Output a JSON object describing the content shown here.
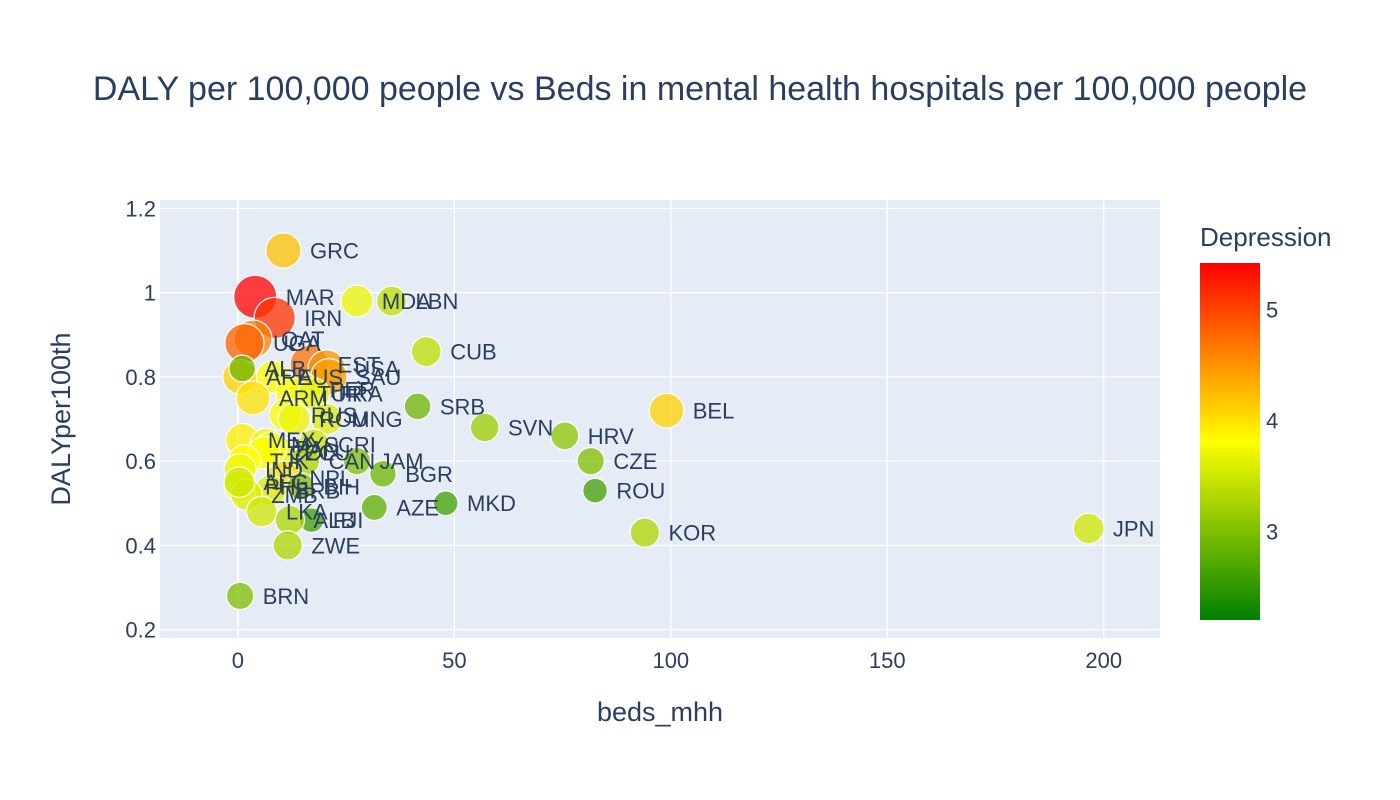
{
  "chart_data": {
    "type": "scatter",
    "title": "DALY per 100,000 people vs Beds in mental health hospitals per 100,000 people",
    "xlabel": "beds_mhh",
    "ylabel": "DALYper100th",
    "xlim": [
      -18,
      213
    ],
    "ylim": [
      0.18,
      1.22
    ],
    "x_ticks": [
      0,
      50,
      100,
      150,
      200
    ],
    "x_tick_labels": [
      "0",
      "50",
      "100",
      "150",
      "200"
    ],
    "y_ticks": [
      0.2,
      0.4,
      0.6,
      0.8,
      1.0,
      1.2
    ],
    "y_tick_labels": [
      "0.2",
      "0.4",
      "0.6",
      "0.8",
      "1",
      "1.2"
    ],
    "grid": true,
    "plot_background": "#e5ecf6",
    "colorbar": {
      "title": "Depression",
      "min": 2.2,
      "max": 5.42,
      "ticks": [
        3,
        4,
        5
      ],
      "tick_labels": [
        "3",
        "4",
        "5"
      ],
      "colors": [
        "#008000",
        "#ffff00",
        "#ff0000"
      ]
    },
    "series": [
      {
        "points": [
          {
            "label": "GRC",
            "x": 10.5,
            "y": 1.1,
            "depression": 4.2
          },
          {
            "label": "MAR",
            "x": 4.0,
            "y": 0.99,
            "depression": 5.4
          },
          {
            "label": "MDA",
            "x": 27.5,
            "y": 0.98,
            "depression": 3.7
          },
          {
            "label": "LBN",
            "x": 35.5,
            "y": 0.98,
            "depression": 3.4
          },
          {
            "label": "IRN",
            "x": 8.5,
            "y": 0.94,
            "depression": 5.1
          },
          {
            "label": "QAT",
            "x": 3.5,
            "y": 0.89,
            "depression": 4.6
          },
          {
            "label": "UGA",
            "x": 1.5,
            "y": 0.88,
            "depression": 4.8
          },
          {
            "label": "CUB",
            "x": 43.5,
            "y": 0.86,
            "depression": 3.4
          },
          {
            "label": "EST",
            "x": 16.5,
            "y": 0.83,
            "depression": 4.7
          },
          {
            "label": "USA",
            "x": 20.5,
            "y": 0.82,
            "depression": 4.5
          },
          {
            "label": "SAU",
            "x": 21.0,
            "y": 0.8,
            "depression": 4.4
          },
          {
            "label": "ARE",
            "x": 0.5,
            "y": 0.8,
            "depression": 4.1
          },
          {
            "label": "AUS",
            "x": 8.0,
            "y": 0.8,
            "depression": 3.8
          },
          {
            "label": "ALB",
            "x": 1.0,
            "y": 0.82,
            "depression": 2.9
          },
          {
            "label": "PER",
            "x": 15.5,
            "y": 0.77,
            "depression": 3.6
          },
          {
            "label": "TUR",
            "x": 12.5,
            "y": 0.76,
            "depression": 3.8
          },
          {
            "label": "FRA",
            "x": 17.5,
            "y": 0.76,
            "depression": 3.7
          },
          {
            "label": "ARM",
            "x": 3.5,
            "y": 0.75,
            "depression": 4.0
          },
          {
            "label": "SRB",
            "x": 41.5,
            "y": 0.73,
            "depression": 2.9
          },
          {
            "label": "BEL",
            "x": 99.0,
            "y": 0.72,
            "depression": 4.1
          },
          {
            "label": "RUS",
            "x": 11.0,
            "y": 0.71,
            "depression": 3.8
          },
          {
            "label": "ROU",
            "x": 13.0,
            "y": 0.7,
            "depression": 3.7
          },
          {
            "label": "MNG",
            "x": 20.5,
            "y": 0.7,
            "depression": 3.6
          },
          {
            "label": "SVN",
            "x": 57.0,
            "y": 0.68,
            "depression": 3.2
          },
          {
            "label": "MEX",
            "x": 1.0,
            "y": 0.65,
            "depression": 3.9
          },
          {
            "label": "HRV",
            "x": 75.5,
            "y": 0.66,
            "depression": 3.1
          },
          {
            "label": "MYS",
            "x": 6.5,
            "y": 0.64,
            "depression": 3.7
          },
          {
            "label": "CRI",
            "x": 17.5,
            "y": 0.64,
            "depression": 3.5
          },
          {
            "label": "ECU",
            "x": 9.5,
            "y": 0.62,
            "depression": 3.7
          },
          {
            "label": "PAN",
            "x": 7.5,
            "y": 0.63,
            "depression": 3.8
          },
          {
            "label": "COL",
            "x": 6.0,
            "y": 0.62,
            "depression": 3.8
          },
          {
            "label": "CAN",
            "x": 15.5,
            "y": 0.6,
            "depression": 3.3
          },
          {
            "label": "CZE",
            "x": 81.5,
            "y": 0.6,
            "depression": 3.0
          },
          {
            "label": "JAM",
            "x": 27.5,
            "y": 0.6,
            "depression": 3.0
          },
          {
            "label": "TJK",
            "x": 1.5,
            "y": 0.6,
            "depression": 3.8
          },
          {
            "label": "IND",
            "x": 0.5,
            "y": 0.58,
            "depression": 3.7
          },
          {
            "label": "BGR",
            "x": 33.5,
            "y": 0.57,
            "depression": 2.9
          },
          {
            "label": "NPL",
            "x": 10.5,
            "y": 0.56,
            "depression": 4.0
          },
          {
            "label": "BIH",
            "x": 14.5,
            "y": 0.54,
            "depression": 3.0
          },
          {
            "label": "PHL",
            "x": 0.5,
            "y": 0.54,
            "depression": 3.7
          },
          {
            "label": "BRB",
            "x": 7.5,
            "y": 0.53,
            "depression": 3.6
          },
          {
            "label": "ROU",
            "x": 82.5,
            "y": 0.53,
            "depression": 2.6
          },
          {
            "label": "ZMB",
            "x": 2.0,
            "y": 0.52,
            "depression": 3.6
          },
          {
            "label": "AFG",
            "x": 0.3,
            "y": 0.55,
            "depression": 3.5
          },
          {
            "label": "LKA",
            "x": 5.5,
            "y": 0.48,
            "depression": 3.5
          },
          {
            "label": "MKD",
            "x": 48.0,
            "y": 0.5,
            "depression": 2.6
          },
          {
            "label": "AZE",
            "x": 31.5,
            "y": 0.49,
            "depression": 2.8
          },
          {
            "label": "FJI",
            "x": 17.0,
            "y": 0.46,
            "depression": 2.6
          },
          {
            "label": "ALB",
            "x": 12.0,
            "y": 0.46,
            "depression": 3.3
          },
          {
            "label": "KOR",
            "x": 94.0,
            "y": 0.43,
            "depression": 3.3
          },
          {
            "label": "JPN",
            "x": 196.5,
            "y": 0.44,
            "depression": 3.5
          },
          {
            "label": "ZWE",
            "x": 11.5,
            "y": 0.4,
            "depression": 3.3
          },
          {
            "label": "BRN",
            "x": 0.5,
            "y": 0.28,
            "depression": 3.0
          }
        ]
      }
    ]
  }
}
